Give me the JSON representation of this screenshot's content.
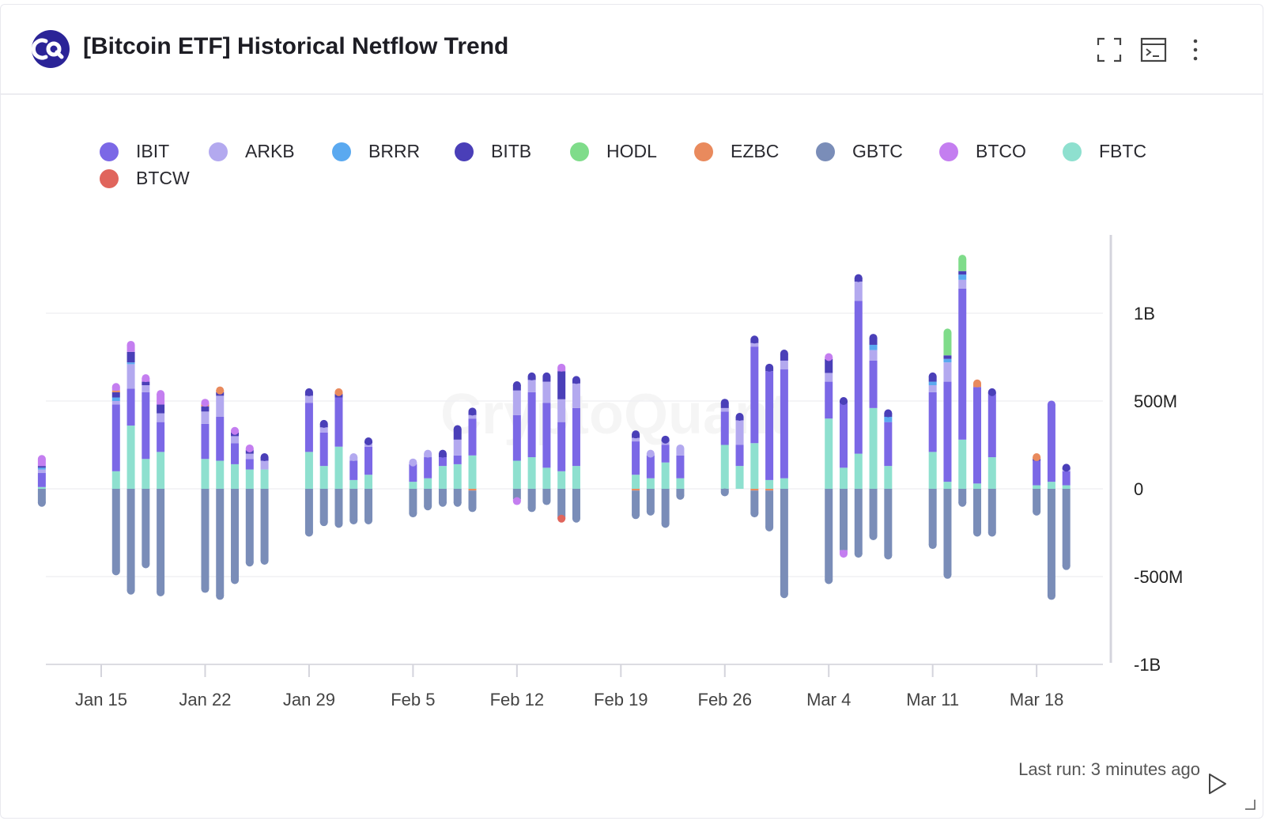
{
  "header": {
    "title": "[Bitcoin ETF] Historical Netflow Trend",
    "brand_color": "#2b2497"
  },
  "toolbar": {
    "expand_icon": "expand-icon",
    "terminal_icon": "terminal-icon",
    "more_icon": "more-vertical-icon"
  },
  "footer": {
    "last_run": "Last run: 3 minutes ago",
    "play_icon": "play-icon"
  },
  "chart_data": {
    "type": "bar",
    "stacked": true,
    "watermark": "CryptoQuant",
    "ylim": [
      -1000000000,
      1400000000
    ],
    "y_ticks": [
      {
        "value": 1000000000,
        "label": "1B"
      },
      {
        "value": 500000000,
        "label": "500M"
      },
      {
        "value": 0,
        "label": "0"
      },
      {
        "value": -500000000,
        "label": "-500M"
      },
      {
        "value": -1000000000,
        "label": "-1B"
      }
    ],
    "x_ticks": [
      "Jan 15",
      "Jan 22",
      "Jan 29",
      "Feb 5",
      "Feb 12",
      "Feb 19",
      "Feb 26",
      "Mar 4",
      "Mar 11",
      "Mar 18"
    ],
    "x_tick_days": [
      15,
      22,
      29,
      36,
      43,
      50,
      57,
      64,
      71,
      78
    ],
    "grid": true,
    "legend_position": "top",
    "series_order": [
      "FBTC",
      "IBIT",
      "ARKB",
      "BRRR",
      "BITB",
      "HODL",
      "EZBC",
      "GBTC",
      "BTCO",
      "BTCW"
    ],
    "legend": [
      {
        "name": "IBIT",
        "color": "#7b68e6"
      },
      {
        "name": "ARKB",
        "color": "#b3a9ef"
      },
      {
        "name": "BRRR",
        "color": "#5aa9f0"
      },
      {
        "name": "BITB",
        "color": "#4a3fb8"
      },
      {
        "name": "HODL",
        "color": "#7fdc8a"
      },
      {
        "name": "EZBC",
        "color": "#e98a5d"
      },
      {
        "name": "GBTC",
        "color": "#7a8db8"
      },
      {
        "name": "BTCO",
        "color": "#c47ef0"
      },
      {
        "name": "FBTC",
        "color": "#8ee0cf"
      },
      {
        "name": "BTCW",
        "color": "#e0655c"
      }
    ],
    "bars": [
      {
        "date": "Jan 11",
        "day": 11,
        "flows": {
          "FBTC": 10000000,
          "IBIT": 80000000,
          "ARKB": 20000000,
          "BRRR": 10000000,
          "BITB": 10000000,
          "BTCO": 40000000,
          "GBTC": -80000000
        }
      },
      {
        "date": "Jan 16",
        "day": 16,
        "flows": {
          "FBTC": 100000000,
          "BTCO": 20000000,
          "EZBC": 10000000,
          "BITB": 30000000,
          "BRRR": 20000000,
          "ARKB": 20000000,
          "IBIT": 380000000,
          "GBTC": -470000000
        }
      },
      {
        "date": "Jan 17",
        "day": 17,
        "flows": {
          "FBTC": 360000000,
          "BTCO": 40000000,
          "BRRR": 10000000,
          "BITB": 60000000,
          "ARKB": 140000000,
          "IBIT": 210000000,
          "GBTC": -580000000
        }
      },
      {
        "date": "Jan 18",
        "day": 18,
        "flows": {
          "FBTC": 170000000,
          "BTCO": 20000000,
          "BITB": 20000000,
          "ARKB": 40000000,
          "IBIT": 380000000,
          "GBTC": -430000000
        }
      },
      {
        "date": "Jan 19",
        "day": 19,
        "flows": {
          "FBTC": 210000000,
          "BTCO": 60000000,
          "BITB": 50000000,
          "ARKB": 50000000,
          "IBIT": 170000000,
          "GBTC": -590000000
        }
      },
      {
        "date": "Jan 22",
        "day": 22,
        "flows": {
          "FBTC": 170000000,
          "EZBC": 10000000,
          "BTCO": 10000000,
          "BITB": 30000000,
          "ARKB": 70000000,
          "IBIT": 200000000,
          "GBTC": -570000000
        }
      },
      {
        "date": "Jan 23",
        "day": 23,
        "flows": {
          "FBTC": 160000000,
          "EZBC": 10000000,
          "BITB": 20000000,
          "ARKB": 120000000,
          "IBIT": 250000000,
          "GBTC": -610000000
        }
      },
      {
        "date": "Jan 24",
        "day": 24,
        "flows": {
          "FBTC": 140000000,
          "BTCO": 10000000,
          "BITB": 20000000,
          "ARKB": 40000000,
          "IBIT": 120000000,
          "GBTC": -520000000
        }
      },
      {
        "date": "Jan 25",
        "day": 25,
        "flows": {
          "FBTC": 110000000,
          "BTCO": 10000000,
          "BITB": 20000000,
          "ARKB": 30000000,
          "IBIT": 60000000,
          "GBTC": -420000000
        }
      },
      {
        "date": "Jan 26",
        "day": 26,
        "flows": {
          "FBTC": 110000000,
          "BITB": 20000000,
          "ARKB": 50000000,
          "GBTC": -410000000
        }
      },
      {
        "date": "Jan 29",
        "day": 29,
        "flows": {
          "FBTC": 210000000,
          "BITB": 20000000,
          "ARKB": 40000000,
          "IBIT": 280000000,
          "GBTC": -250000000
        }
      },
      {
        "date": "Jan 30",
        "day": 30,
        "flows": {
          "FBTC": 130000000,
          "BITB": 20000000,
          "ARKB": 30000000,
          "IBIT": 190000000,
          "GBTC": -190000000
        }
      },
      {
        "date": "Jan 31",
        "day": 31,
        "flows": {
          "FBTC": 240000000,
          "EZBC": 10000000,
          "BITB": 20000000,
          "IBIT": 280000000,
          "GBTC": -200000000
        }
      },
      {
        "date": "Feb 1",
        "day": 32,
        "flows": {
          "FBTC": 50000000,
          "ARKB": 20000000,
          "IBIT": 110000000,
          "GBTC": -180000000
        }
      },
      {
        "date": "Feb 2",
        "day": 33,
        "flows": {
          "FBTC": 80000000,
          "BITB": 10000000,
          "ARKB": 20000000,
          "IBIT": 160000000,
          "GBTC": -180000000
        }
      },
      {
        "date": "Feb 5",
        "day": 36,
        "flows": {
          "FBTC": 40000000,
          "ARKB": 10000000,
          "IBIT": 100000000,
          "GBTC": -140000000
        }
      },
      {
        "date": "Feb 6",
        "day": 37,
        "flows": {
          "FBTC": 60000000,
          "ARKB": 20000000,
          "IBIT": 120000000,
          "GBTC": -100000000
        }
      },
      {
        "date": "Feb 7",
        "day": 38,
        "flows": {
          "FBTC": 130000000,
          "BITB": 20000000,
          "IBIT": 50000000,
          "GBTC": -80000000
        }
      },
      {
        "date": "Feb 8",
        "day": 39,
        "flows": {
          "FBTC": 140000000,
          "BITB": 60000000,
          "ARKB": 90000000,
          "IBIT": 50000000,
          "GBTC": -80000000
        }
      },
      {
        "date": "Feb 9",
        "day": 40,
        "flows": {
          "FBTC": 190000000,
          "BITB": 20000000,
          "ARKB": 20000000,
          "IBIT": 210000000,
          "EZBC": -10000000,
          "GBTC": -100000000
        }
      },
      {
        "date": "Feb 12",
        "day": 43,
        "flows": {
          "FBTC": 160000000,
          "BITB": 30000000,
          "ARKB": 140000000,
          "IBIT": 260000000,
          "BTCO": -10000000,
          "GBTC": -60000000
        }
      },
      {
        "date": "Feb 13",
        "day": 44,
        "flows": {
          "FBTC": 180000000,
          "BITB": 20000000,
          "ARKB": 70000000,
          "IBIT": 370000000,
          "GBTC": -110000000
        }
      },
      {
        "date": "Feb 14",
        "day": 45,
        "flows": {
          "FBTC": 120000000,
          "BITB": 30000000,
          "ARKB": 120000000,
          "IBIT": 370000000,
          "GBTC": -70000000
        }
      },
      {
        "date": "Feb 15",
        "day": 46,
        "flows": {
          "FBTC": 100000000,
          "BTCO": 20000000,
          "BITB": 160000000,
          "ARKB": 130000000,
          "IBIT": 280000000,
          "BTCW": -10000000,
          "GBTC": -160000000
        }
      },
      {
        "date": "Feb 16",
        "day": 47,
        "flows": {
          "FBTC": 130000000,
          "BITB": 20000000,
          "ARKB": 140000000,
          "IBIT": 330000000,
          "GBTC": -170000000
        }
      },
      {
        "date": "Feb 20",
        "day": 51,
        "flows": {
          "FBTC": 80000000,
          "BITB": 20000000,
          "ARKB": 20000000,
          "IBIT": 190000000,
          "EZBC": -10000000,
          "GBTC": -140000000
        }
      },
      {
        "date": "Feb 21",
        "day": 52,
        "flows": {
          "FBTC": 60000000,
          "ARKB": 10000000,
          "IBIT": 130000000,
          "GBTC": -130000000
        }
      },
      {
        "date": "Feb 22",
        "day": 53,
        "flows": {
          "FBTC": 150000000,
          "BITB": 10000000,
          "ARKB": 20000000,
          "IBIT": 100000000,
          "GBTC": -200000000
        }
      },
      {
        "date": "Feb 23",
        "day": 54,
        "flows": {
          "FBTC": 60000000,
          "ARKB": 40000000,
          "IBIT": 130000000,
          "GBTC": -40000000
        }
      },
      {
        "date": "Feb 26",
        "day": 57,
        "flows": {
          "FBTC": 250000000,
          "BITB": 30000000,
          "ARKB": 20000000,
          "IBIT": 190000000,
          "GBTC": -20000000
        }
      },
      {
        "date": "Feb 27",
        "day": 58,
        "flows": {
          "FBTC": 130000000,
          "BITB": 20000000,
          "ARKB": 140000000,
          "IBIT": 120000000
        }
      },
      {
        "date": "Feb 28",
        "day": 59,
        "flows": {
          "FBTC": 260000000,
          "BITB": 20000000,
          "ARKB": 20000000,
          "IBIT": 550000000,
          "EZBC": -10000000,
          "GBTC": -130000000
        }
      },
      {
        "date": "Feb 29",
        "day": 60,
        "flows": {
          "FBTC": 50000000,
          "BITB": 20000000,
          "IBIT": 620000000,
          "EZBC": -10000000,
          "GBTC": -210000000
        }
      },
      {
        "date": "Mar 1",
        "day": 61,
        "flows": {
          "FBTC": 60000000,
          "BITB": 40000000,
          "ARKB": 50000000,
          "IBIT": 620000000,
          "GBTC": -600000000
        }
      },
      {
        "date": "Mar 4",
        "day": 64,
        "flows": {
          "FBTC": 400000000,
          "BTCO": 10000000,
          "BITB": 80000000,
          "ARKB": 50000000,
          "IBIT": 210000000,
          "GBTC": -520000000
        }
      },
      {
        "date": "Mar 5",
        "day": 65,
        "flows": {
          "FBTC": 120000000,
          "BITB": 10000000,
          "IBIT": 370000000,
          "BTCO": -20000000,
          "GBTC": -350000000
        }
      },
      {
        "date": "Mar 6",
        "day": 66,
        "flows": {
          "FBTC": 200000000,
          "BITB": 20000000,
          "ARKB": 110000000,
          "IBIT": 870000000,
          "GBTC": -370000000
        }
      },
      {
        "date": "Mar 7",
        "day": 67,
        "flows": {
          "FBTC": 460000000,
          "BITB": 40000000,
          "BRRR": 30000000,
          "ARKB": 60000000,
          "IBIT": 270000000,
          "GBTC": -270000000
        }
      },
      {
        "date": "Mar 8",
        "day": 68,
        "flows": {
          "FBTC": 130000000,
          "BITB": 20000000,
          "BRRR": 30000000,
          "IBIT": 250000000,
          "GBTC": -380000000
        }
      },
      {
        "date": "Mar 11",
        "day": 71,
        "flows": {
          "FBTC": 210000000,
          "BITB": 30000000,
          "BRRR": 20000000,
          "ARKB": 40000000,
          "IBIT": 340000000,
          "GBTC": -320000000
        }
      },
      {
        "date": "Mar 12",
        "day": 72,
        "flows": {
          "FBTC": 40000000,
          "HODL": 130000000,
          "BITB": 20000000,
          "BRRR": 20000000,
          "ARKB": 110000000,
          "IBIT": 570000000,
          "GBTC": -490000000
        }
      },
      {
        "date": "Mar 13",
        "day": 73,
        "flows": {
          "FBTC": 280000000,
          "HODL": 70000000,
          "BITB": 20000000,
          "BRRR": 30000000,
          "ARKB": 50000000,
          "IBIT": 860000000,
          "GBTC": -80000000
        }
      },
      {
        "date": "Mar 14",
        "day": 74,
        "flows": {
          "FBTC": 30000000,
          "EZBC": 20000000,
          "IBIT": 550000000,
          "GBTC": -250000000
        }
      },
      {
        "date": "Mar 15",
        "day": 75,
        "flows": {
          "FBTC": 180000000,
          "BITB": 10000000,
          "IBIT": 360000000,
          "GBTC": -250000000
        }
      },
      {
        "date": "Mar 18",
        "day": 78,
        "flows": {
          "FBTC": 20000000,
          "EZBC": 10000000,
          "BITB": 10000000,
          "IBIT": 140000000,
          "GBTC": -130000000
        }
      },
      {
        "date": "Mar 19",
        "day": 79,
        "flows": {
          "FBTC": 40000000,
          "IBIT": 440000000,
          "GBTC": -610000000
        }
      },
      {
        "date": "Mar 20",
        "day": 80,
        "flows": {
          "FBTC": 20000000,
          "BITB": 10000000,
          "ARKB": 10000000,
          "IBIT": 80000000,
          "GBTC": -440000000
        }
      }
    ]
  }
}
